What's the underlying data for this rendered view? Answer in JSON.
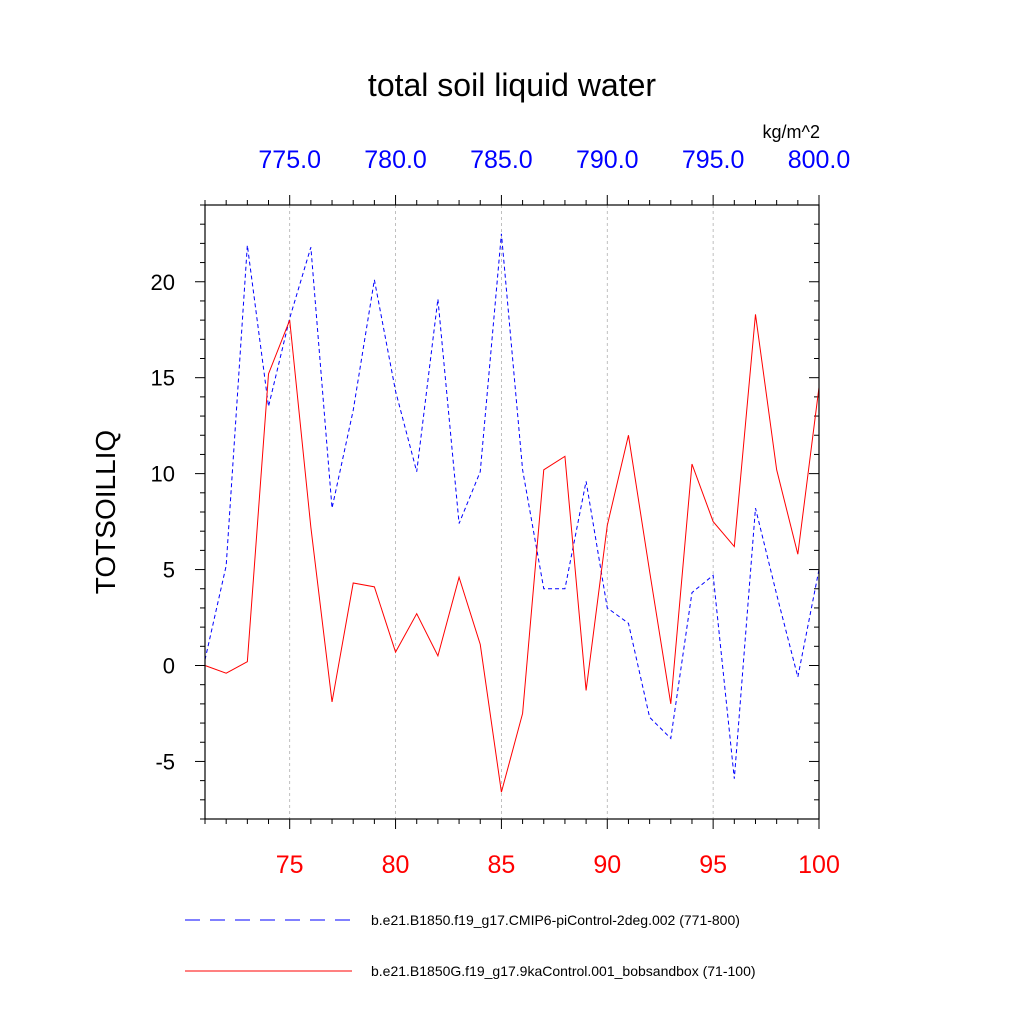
{
  "chart_data": {
    "type": "line",
    "title": "total soil liquid water",
    "units": "kg/m^2",
    "ylabel": "TOTSOILLIQ",
    "ylim": [
      -8,
      24
    ],
    "yticks": [
      -5,
      0,
      5,
      10,
      15,
      20
    ],
    "ytick_labels": [
      "-5",
      "0",
      "5",
      "10",
      "15",
      "20"
    ],
    "bottom_axis": {
      "range": [
        71,
        100
      ],
      "ticks": [
        75,
        80,
        85,
        90,
        95,
        100
      ],
      "tick_labels": [
        "75",
        "80",
        "85",
        "90",
        "95",
        "100"
      ],
      "color": "#ff0000"
    },
    "top_axis": {
      "range": [
        771,
        800
      ],
      "ticks": [
        775,
        780,
        785,
        790,
        795,
        800
      ],
      "tick_labels": [
        "775.0",
        "780.0",
        "785.0",
        "790.0",
        "795.0",
        "800.0"
      ],
      "color": "#0000ff"
    },
    "grid": "vertical dashed at major ticks",
    "series": [
      {
        "name": "b.e21.B1850.f19_g17.CMIP6-piControl-2deg.002 (771-800)",
        "color": "#0000ff",
        "style": "dashed",
        "axis": "top",
        "x": [
          771,
          772,
          773,
          774,
          775,
          776,
          777,
          778,
          779,
          780,
          781,
          782,
          783,
          784,
          785,
          786,
          787,
          788,
          789,
          790,
          791,
          792,
          793,
          794,
          795,
          796,
          797,
          798,
          799,
          800
        ],
        "values": [
          0.3,
          5.2,
          21.9,
          13.5,
          18.1,
          21.8,
          8.2,
          13.3,
          20.1,
          14.3,
          10.1,
          19.1,
          7.4,
          10.1,
          22.5,
          10.2,
          4.0,
          4.0,
          9.6,
          3.0,
          2.2,
          -2.7,
          -3.8,
          3.8,
          4.7,
          -5.9,
          8.2,
          3.7,
          -0.6,
          5.0
        ]
      },
      {
        "name": "b.e21.B1850G.f19_g17.9kaControl.001_bobsandbox (71-100)",
        "color": "#ff0000",
        "style": "solid",
        "axis": "bottom",
        "x": [
          71,
          72,
          73,
          74,
          75,
          76,
          77,
          78,
          79,
          80,
          81,
          82,
          83,
          84,
          85,
          86,
          87,
          88,
          89,
          90,
          91,
          92,
          93,
          94,
          95,
          96,
          97,
          98,
          99,
          100
        ],
        "values": [
          0.0,
          -0.4,
          0.2,
          15.2,
          18.0,
          7.2,
          -1.9,
          4.3,
          4.1,
          0.7,
          2.7,
          0.5,
          4.6,
          1.1,
          -6.6,
          -2.5,
          10.2,
          10.9,
          -1.3,
          7.3,
          12.0,
          4.9,
          -2.0,
          10.5,
          7.5,
          6.2,
          18.3,
          10.2,
          5.8,
          14.5
        ]
      }
    ],
    "legend": "bottom"
  }
}
